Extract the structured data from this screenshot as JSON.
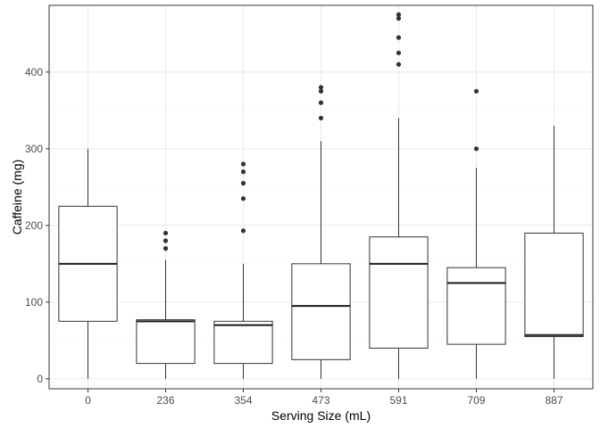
{
  "chart_data": {
    "type": "boxplot",
    "xlabel": "Serving Size (mL)",
    "ylabel": "Caffeine (mg)",
    "categories": [
      "0",
      "236",
      "354",
      "473",
      "591",
      "709",
      "887"
    ],
    "y_ticks": [
      0,
      100,
      200,
      300,
      400
    ],
    "ylim": [
      -13,
      487
    ],
    "grid": true,
    "boxes": [
      {
        "category": "0",
        "whisker_low": 0,
        "q1": 75,
        "median": 150,
        "q3": 225,
        "whisker_high": 300,
        "outliers": []
      },
      {
        "category": "236",
        "whisker_low": 0,
        "q1": 20,
        "median": 75,
        "q3": 77,
        "whisker_high": 155,
        "outliers": [
          170,
          180,
          190
        ]
      },
      {
        "category": "354",
        "whisker_low": 0,
        "q1": 20,
        "median": 70,
        "q3": 75,
        "whisker_high": 150,
        "outliers": [
          193,
          235,
          255,
          270,
          280
        ]
      },
      {
        "category": "473",
        "whisker_low": 0,
        "q1": 25,
        "median": 95,
        "q3": 150,
        "whisker_high": 310,
        "outliers": [
          340,
          360,
          375,
          380
        ]
      },
      {
        "category": "591",
        "whisker_low": 0,
        "q1": 40,
        "median": 150,
        "q3": 185,
        "whisker_high": 340,
        "outliers": [
          410,
          425,
          445,
          470,
          475
        ]
      },
      {
        "category": "709",
        "whisker_low": 0,
        "q1": 45,
        "median": 125,
        "q3": 145,
        "whisker_high": 275,
        "outliers": [
          300,
          375
        ]
      },
      {
        "category": "887",
        "whisker_low": 0,
        "q1": 55,
        "median": 57,
        "q3": 190,
        "whisker_high": 330,
        "outliers": []
      }
    ],
    "colors": {
      "background": "#ffffff",
      "panel_border": "#333333",
      "grid_major": "#ebebeb",
      "grid_minor": "#f5f5f5",
      "box_stroke": "#333333",
      "median": "#1a1a1a",
      "outlier": "#333333",
      "tick_text": "#4d4d4d"
    }
  }
}
